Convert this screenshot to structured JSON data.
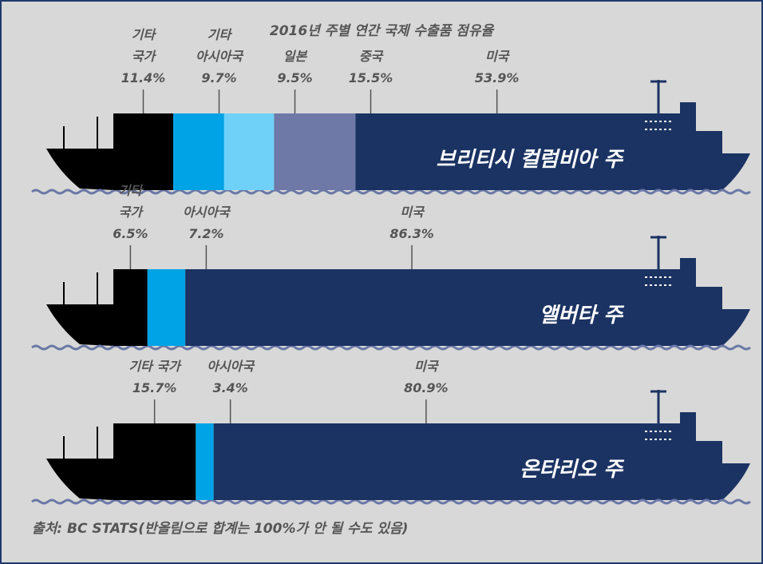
{
  "title": "2016년 주별 연간 국제 수출품 점유율",
  "source": "출처: BC STATS(반올림으로 합계는 100%가 안 될 수도 있음)",
  "chart_data": [
    {
      "type": "bar",
      "title": "브리티시 컬럼비아 주",
      "categories": [
        "기타 국가",
        "기타 아시아국",
        "일본",
        "중국",
        "미국"
      ],
      "values": [
        11.4,
        9.7,
        9.5,
        15.5,
        53.9
      ],
      "value_labels": [
        "11.4%",
        "9.7%",
        "9.5%",
        "15.5%",
        "53.9%"
      ],
      "colors": [
        "#000000",
        "#00a3e6",
        "#6fd1f8",
        "#6e79a8",
        "#1b3363"
      ]
    },
    {
      "type": "bar",
      "title": "앨버타 주",
      "categories": [
        "기타 국가",
        "아시아국",
        "미국"
      ],
      "values": [
        6.5,
        7.2,
        86.3
      ],
      "value_labels": [
        "6.5%",
        "7.2%",
        "86.3%"
      ],
      "colors": [
        "#000000",
        "#00a3e6",
        "#1b3363"
      ]
    },
    {
      "type": "bar",
      "title": "온타리오 주",
      "categories": [
        "기타 국가",
        "아시아국",
        "미국"
      ],
      "values": [
        15.7,
        3.4,
        80.9
      ],
      "value_labels": [
        "15.7%",
        "3.4%",
        "80.9%"
      ],
      "colors": [
        "#000000",
        "#00a3e6",
        "#1b3363"
      ]
    }
  ]
}
